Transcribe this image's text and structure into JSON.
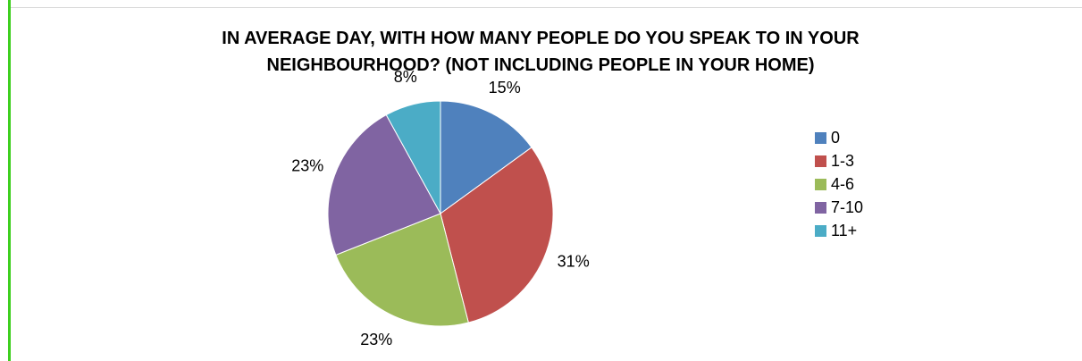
{
  "chart_data": {
    "type": "pie",
    "title": "IN AVERAGE DAY, WITH HOW MANY PEOPLE DO YOU SPEAK TO IN YOUR\nNEIGHBOURHOOD? (NOT INCLUDING PEOPLE IN YOUR HOME)",
    "categories": [
      "0",
      "1-3",
      "4-6",
      "7-10",
      "11+"
    ],
    "values": [
      15,
      31,
      23,
      23,
      8
    ],
    "labels": [
      "15%",
      "31%",
      "23%",
      "23%",
      "8%"
    ],
    "colors": [
      "#4f81bd",
      "#c0504d",
      "#9bbb59",
      "#8064a2",
      "#4bacc6"
    ],
    "legend_position": "right"
  }
}
